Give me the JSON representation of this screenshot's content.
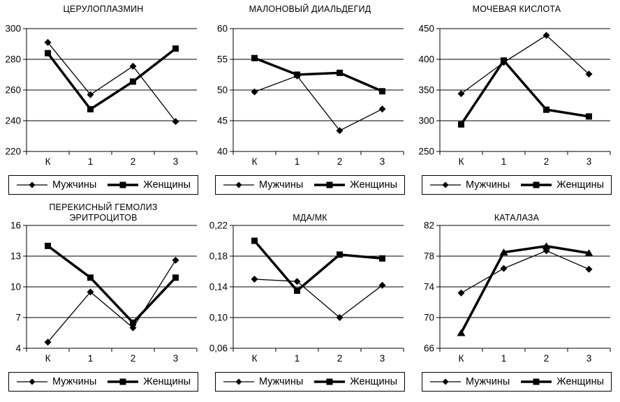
{
  "figure": {
    "background": "#ffffff",
    "series_color": "#000000",
    "x_categories": [
      "К",
      "1",
      "2",
      "3"
    ]
  },
  "chart_data": [
    {
      "id": "ceruloplasmin",
      "type": "line",
      "title": "ЦЕРУЛОПЛАЗМИН",
      "xlabel": "",
      "ylabel": "",
      "grid": true,
      "legend_position": "bottom",
      "categories": [
        "К",
        "1",
        "2",
        "3"
      ],
      "ylim": [
        220,
        300
      ],
      "ytick_values": [
        220,
        240,
        260,
        280,
        300
      ],
      "ytick_labels": [
        "220",
        "240",
        "260",
        "280",
        "300"
      ],
      "series": [
        {
          "name": "Мужчины",
          "marker": "diamond",
          "line_width": "thin",
          "values": [
            291,
            257,
            275.5,
            239.5
          ]
        },
        {
          "name": "Женщины",
          "marker": "square",
          "line_width": "thick",
          "values": [
            284,
            247.5,
            265.5,
            287
          ]
        }
      ]
    },
    {
      "id": "malondialdehyde",
      "type": "line",
      "title": "МАЛОНОВЫЙ ДИАЛЬДЕГИД",
      "xlabel": "",
      "ylabel": "",
      "grid": true,
      "legend_position": "bottom",
      "categories": [
        "К",
        "1",
        "2",
        "3"
      ],
      "ylim": [
        40,
        60
      ],
      "ytick_values": [
        40,
        45,
        50,
        55,
        60
      ],
      "ytick_labels": [
        "40",
        "45",
        "50",
        "55",
        "60"
      ],
      "series": [
        {
          "name": "Мужчины",
          "marker": "diamond",
          "line_width": "thin",
          "values": [
            49.7,
            52.3,
            43.4,
            46.9
          ]
        },
        {
          "name": "Женщины",
          "marker": "square",
          "line_width": "thick",
          "values": [
            55.2,
            52.5,
            52.8,
            49.8
          ]
        }
      ]
    },
    {
      "id": "uric-acid",
      "type": "line",
      "title": "МОЧЕВАЯ КИСЛОТА",
      "xlabel": "",
      "ylabel": "",
      "grid": true,
      "legend_position": "bottom",
      "categories": [
        "К",
        "1",
        "2",
        "3"
      ],
      "ylim": [
        250,
        450
      ],
      "ytick_values": [
        250,
        300,
        350,
        400,
        450
      ],
      "ytick_labels": [
        "250",
        "300",
        "350",
        "400",
        "450"
      ],
      "series": [
        {
          "name": "Мужчины",
          "marker": "diamond",
          "line_width": "thin",
          "values": [
            344,
            395,
            439,
            376
          ]
        },
        {
          "name": "Женщины",
          "marker": "square",
          "line_width": "thick",
          "values": [
            294,
            398,
            318,
            307
          ]
        }
      ]
    },
    {
      "id": "erythrocyte-peroxide-hemolysis",
      "type": "line",
      "title": "ПЕРЕКИСНЫЙ ГЕМОЛИЗ ЭРИТРОЦИТОВ",
      "xlabel": "",
      "ylabel": "",
      "grid": true,
      "legend_position": "bottom",
      "categories": [
        "К",
        "1",
        "2",
        "3"
      ],
      "ylim": [
        4,
        16
      ],
      "ytick_values": [
        4,
        7,
        10,
        13,
        16
      ],
      "ytick_labels": [
        "4",
        "7",
        "10",
        "13",
        "16"
      ],
      "series": [
        {
          "name": "Мужчины",
          "marker": "diamond",
          "line_width": "thin",
          "values": [
            4.6,
            9.5,
            6.0,
            12.6
          ]
        },
        {
          "name": "Женщины",
          "marker": "square",
          "line_width": "thick",
          "values": [
            14.0,
            10.9,
            6.5,
            10.9
          ]
        }
      ]
    },
    {
      "id": "mda-mk",
      "type": "line",
      "title": "МДА/МК",
      "xlabel": "",
      "ylabel": "",
      "grid": true,
      "legend_position": "bottom",
      "categories": [
        "К",
        "1",
        "2",
        "3"
      ],
      "ylim": [
        0.06,
        0.22
      ],
      "ytick_values": [
        0.06,
        0.1,
        0.14,
        0.18,
        0.22
      ],
      "ytick_labels": [
        "0,06",
        "0,10",
        "0,14",
        "0,18",
        "0,22"
      ],
      "series": [
        {
          "name": "Мужчины",
          "marker": "diamond",
          "line_width": "thin",
          "values": [
            0.15,
            0.147,
            0.1,
            0.142
          ]
        },
        {
          "name": "Женщины",
          "marker": "square",
          "line_width": "thick",
          "values": [
            0.2,
            0.135,
            0.182,
            0.177
          ]
        }
      ]
    },
    {
      "id": "catalase",
      "type": "line",
      "title": "КАТАЛАЗА",
      "xlabel": "",
      "ylabel": "",
      "grid": true,
      "legend_position": "bottom",
      "categories": [
        "К",
        "1",
        "2",
        "3"
      ],
      "ylim": [
        66,
        82
      ],
      "ytick_values": [
        66,
        70,
        74,
        78,
        82
      ],
      "ytick_labels": [
        "66",
        "70",
        "74",
        "78",
        "82"
      ],
      "series": [
        {
          "name": "Мужчины",
          "marker": "diamond",
          "line_width": "thin",
          "values": [
            73.2,
            76.4,
            78.7,
            76.3
          ]
        },
        {
          "name": "Женщины",
          "marker": "triangle",
          "line_width": "thick",
          "values": [
            68.0,
            78.5,
            79.3,
            78.4
          ]
        }
      ]
    }
  ]
}
